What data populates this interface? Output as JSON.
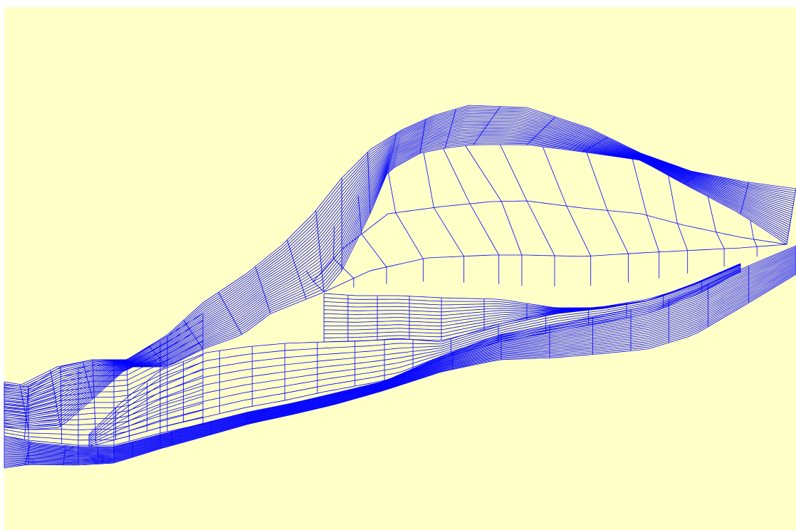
{
  "viewer": {
    "background_color": "#ffffc8",
    "frame_color": "#ffffff",
    "mesh_line_color": "#0000ff"
  },
  "mesh": {
    "description_type": "structured curvilinear quad mesh of a river channel with a bulging island/main-channel region",
    "blocks": 3,
    "main_channel_streamwise_lines": 14,
    "main_channel_cross_lines": 14,
    "bank_band_lines": 30
  }
}
